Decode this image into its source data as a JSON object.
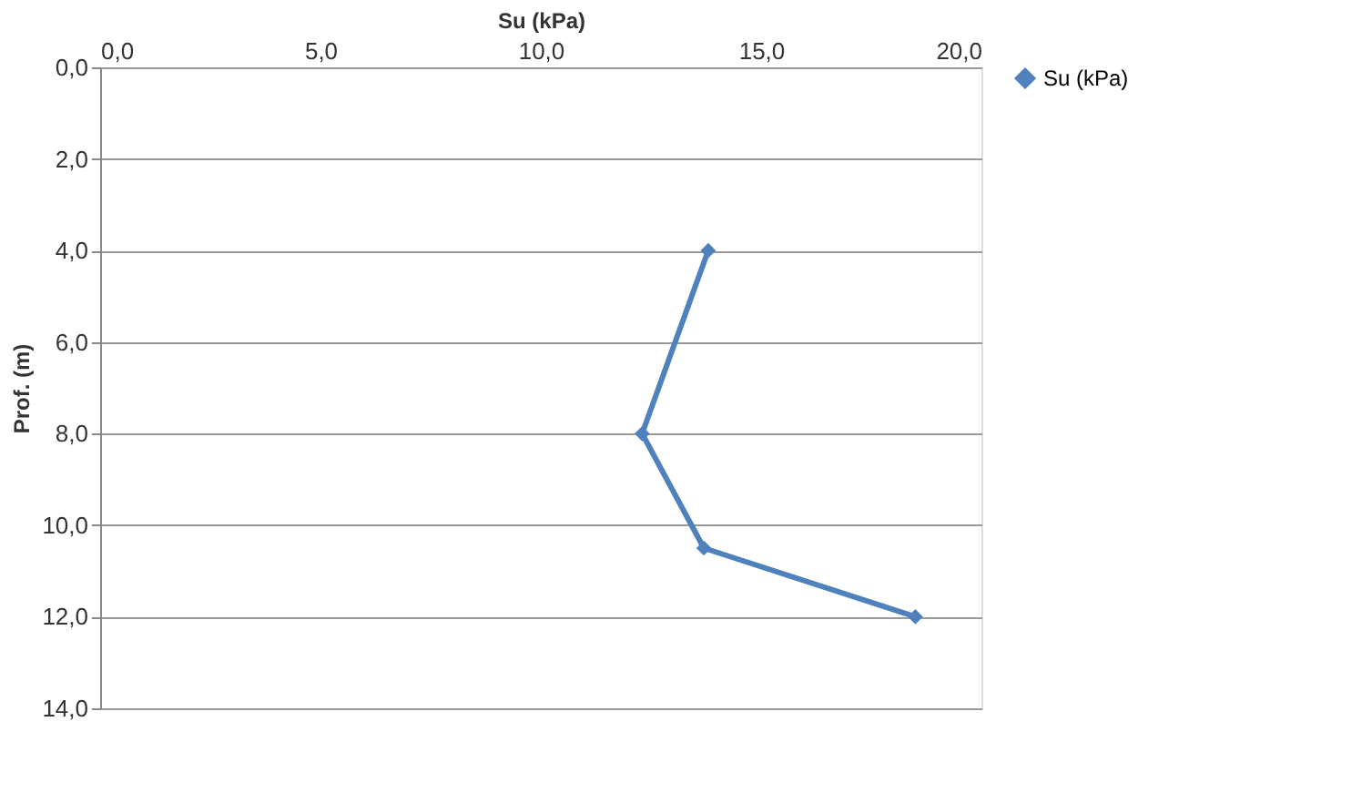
{
  "chart_data": {
    "type": "line",
    "xlabel": "Su (kPa)",
    "ylabel": "Prof. (m)",
    "xlim": [
      0,
      20
    ],
    "xticks": [
      {
        "value": 0,
        "label": "0,0"
      },
      {
        "value": 5,
        "label": "5,0"
      },
      {
        "value": 10,
        "label": "10,0"
      },
      {
        "value": 15,
        "label": "15,0"
      },
      {
        "value": 20,
        "label": "20,0"
      }
    ],
    "ylim": [
      14,
      0
    ],
    "yticks": [
      {
        "value": 0,
        "label": "0,0"
      },
      {
        "value": 2,
        "label": "2,0"
      },
      {
        "value": 4,
        "label": "4,0"
      },
      {
        "value": 6,
        "label": "6,0"
      },
      {
        "value": 8,
        "label": "8,0"
      },
      {
        "value": 10,
        "label": "10,0"
      },
      {
        "value": 12,
        "label": "12,0"
      },
      {
        "value": 14,
        "label": "14,0"
      }
    ],
    "series": [
      {
        "name": "Su (kPa)",
        "color": "#4f81bd",
        "x": [
          13.8,
          12.3,
          13.7,
          18.5
        ],
        "values": [
          4.0,
          8.0,
          10.5,
          12.0
        ]
      }
    ],
    "grid": "y",
    "legend": "right",
    "marker": "diamond",
    "line_style": "solid"
  }
}
